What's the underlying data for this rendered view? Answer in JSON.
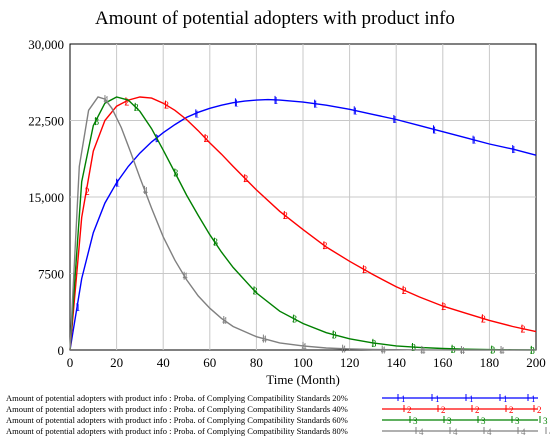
{
  "chart_data": {
    "type": "line",
    "title": "Amount of potential adopters with product info",
    "xlabel": "Time (Month)",
    "ylabel": "",
    "xlim": [
      0,
      200
    ],
    "ylim": [
      0,
      30000
    ],
    "x_ticks": [
      0,
      20,
      40,
      60,
      80,
      100,
      120,
      140,
      160,
      180,
      200
    ],
    "x_tick_labels": [
      "0",
      "20",
      "40",
      "60",
      "80",
      "100",
      "120",
      "140",
      "160",
      "180",
      "200"
    ],
    "y_ticks": [
      0,
      7500,
      15000,
      22500,
      30000
    ],
    "y_tick_labels": [
      "0",
      "7500",
      "15,000",
      "22,500",
      "30,000"
    ],
    "grid": true,
    "legend_position": "bottom",
    "series": [
      {
        "name": "Amount of potential adopters with product info : Proba. of Complying Compatibility Standards 20%",
        "marker": "1",
        "color": "#0000ff",
        "x": [
          0,
          5,
          10,
          15,
          20,
          25,
          30,
          35,
          40,
          45,
          50,
          55,
          60,
          65,
          70,
          75,
          80,
          85,
          90,
          95,
          100,
          110,
          120,
          130,
          140,
          150,
          160,
          170,
          180,
          190,
          200
        ],
        "y": [
          0,
          7000,
          11500,
          14400,
          16400,
          18000,
          19300,
          20400,
          21300,
          22100,
          22800,
          23300,
          23700,
          24000,
          24250,
          24400,
          24500,
          24550,
          24500,
          24400,
          24300,
          24000,
          23600,
          23100,
          22600,
          22000,
          21400,
          20800,
          20200,
          19700,
          19100
        ]
      },
      {
        "name": "Amount of potential adopters with product info : Proba. of Complying Compatibility Standards 40%",
        "marker": "2",
        "color": "#ff0000",
        "x": [
          0,
          5,
          10,
          15,
          20,
          25,
          30,
          35,
          40,
          45,
          50,
          55,
          60,
          65,
          70,
          80,
          90,
          100,
          110,
          120,
          130,
          140,
          150,
          160,
          170,
          180,
          190,
          200
        ],
        "y": [
          0,
          13000,
          19500,
          22500,
          23900,
          24500,
          24800,
          24700,
          24200,
          23500,
          22600,
          21500,
          20300,
          19200,
          18000,
          15700,
          13600,
          11800,
          10100,
          8700,
          7400,
          6200,
          5200,
          4300,
          3600,
          2900,
          2300,
          1800
        ]
      },
      {
        "name": "Amount of potential adopters with product info : Proba. of Complying Compatibility Standards 60%",
        "marker": "3",
        "color": "#008000",
        "x": [
          0,
          5,
          10,
          15,
          20,
          25,
          30,
          35,
          40,
          45,
          50,
          55,
          60,
          65,
          70,
          80,
          90,
          100,
          110,
          120,
          130,
          140,
          150,
          160,
          170,
          180,
          190,
          200
        ],
        "y": [
          0,
          16500,
          22000,
          24200,
          24800,
          24500,
          23400,
          21700,
          19600,
          17400,
          15200,
          13200,
          11300,
          9600,
          8100,
          5600,
          3800,
          2600,
          1700,
          1100,
          700,
          400,
          250,
          150,
          80,
          40,
          20,
          10
        ]
      },
      {
        "name": "Amount of potential adopters with product info : Proba. of Complying Compatibility Standards 80%",
        "marker": "4",
        "color": "#808080",
        "x": [
          0,
          4,
          8,
          12,
          15,
          18,
          22,
          26,
          30,
          35,
          40,
          45,
          50,
          55,
          60,
          65,
          70,
          80,
          90,
          100,
          110,
          120,
          130,
          140,
          150,
          160,
          170,
          180,
          190,
          200
        ],
        "y": [
          0,
          18000,
          23500,
          24800,
          24600,
          23700,
          21800,
          19400,
          16900,
          13900,
          11100,
          8800,
          6900,
          5300,
          4100,
          3100,
          2300,
          1300,
          700,
          400,
          200,
          100,
          50,
          25,
          10,
          5,
          0,
          0,
          0,
          0
        ]
      }
    ]
  }
}
